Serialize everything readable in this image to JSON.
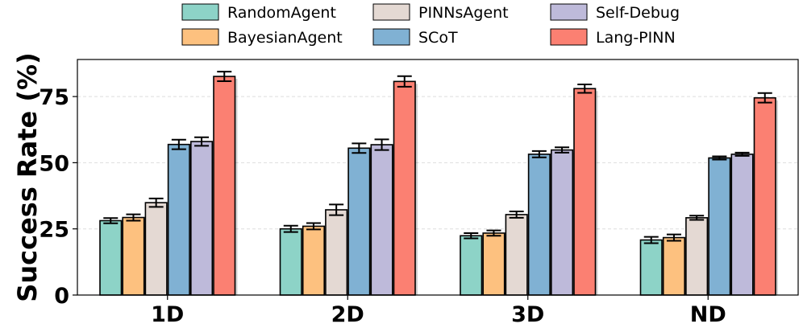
{
  "chart_data": {
    "type": "bar",
    "ylabel": "Success Rate (%)",
    "xlabel": "",
    "ylim": [
      0,
      89
    ],
    "yticks": [
      0,
      25,
      50,
      75
    ],
    "grid": true,
    "legend_position": "top",
    "categories": [
      "1D",
      "2D",
      "3D",
      "ND"
    ],
    "series": [
      {
        "name": "RandomAgent",
        "color": "#8dd3c7",
        "values": [
          28.1,
          25.0,
          22.4,
          20.8
        ],
        "errors": [
          1.0,
          1.2,
          1.0,
          1.2
        ]
      },
      {
        "name": "BayesianAgent",
        "color": "#fdc17f",
        "values": [
          29.3,
          26.0,
          23.4,
          21.7
        ],
        "errors": [
          1.2,
          1.2,
          1.0,
          1.2
        ]
      },
      {
        "name": "PINNsAgent",
        "color": "#e4d9d3",
        "values": [
          34.9,
          32.2,
          30.4,
          29.2
        ],
        "errors": [
          1.6,
          2.0,
          1.2,
          0.8
        ]
      },
      {
        "name": "SCoT",
        "color": "#80b1d3",
        "values": [
          56.9,
          55.5,
          53.2,
          51.8
        ],
        "errors": [
          1.8,
          1.8,
          1.2,
          0.6
        ]
      },
      {
        "name": "Self-Debug",
        "color": "#bebada",
        "values": [
          58.0,
          56.8,
          54.8,
          53.2
        ],
        "errors": [
          1.6,
          2.0,
          1.0,
          0.6
        ]
      },
      {
        "name": "Lang-PINN",
        "color": "#fb8072",
        "values": [
          82.6,
          80.7,
          78.0,
          74.5
        ],
        "errors": [
          1.8,
          2.0,
          1.6,
          1.8
        ]
      }
    ]
  }
}
